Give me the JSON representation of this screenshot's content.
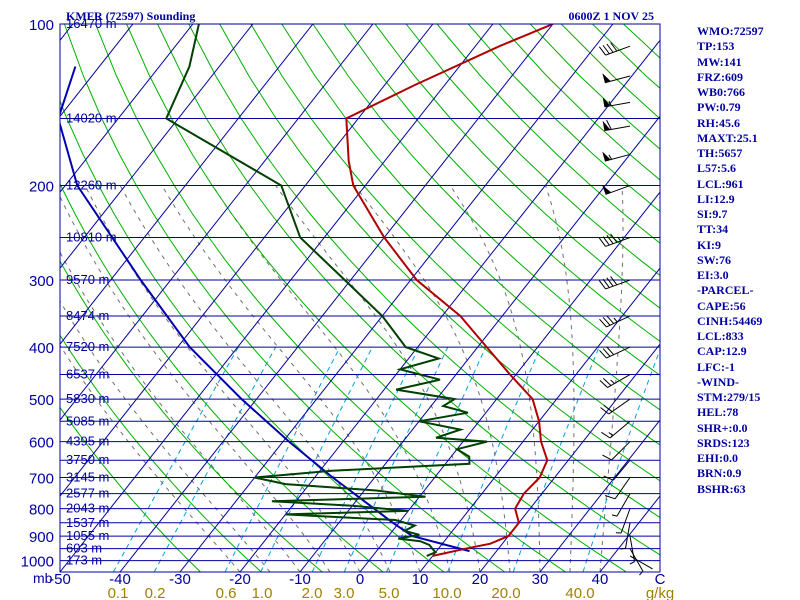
{
  "chart_data": {
    "type": "line",
    "title": "KMFR (72597) Sounding",
    "time_label": "0600Z  1 NOV 25",
    "pressure_axis_unit": "mb",
    "pressure_ticks": [
      100,
      200,
      300,
      400,
      500,
      600,
      700,
      800,
      900,
      1000
    ],
    "pressure_tick_labels": [
      "100",
      "200",
      "300",
      "400",
      "500",
      "600",
      "700",
      "800",
      "900",
      "1000"
    ],
    "temperature_ticks": [
      -50,
      -40,
      -30,
      -20,
      -10,
      0,
      10,
      20,
      30,
      40,
      50
    ],
    "temperature_tick_labels": [
      "-50",
      "-40",
      "-30",
      "-20",
      "-10",
      "0",
      "10",
      "20",
      "30",
      "40",
      "C"
    ],
    "mixing_ratio_labels": [
      "0.1",
      "0.2",
      "0.6",
      "1.0",
      "2.0",
      "3.0",
      "5.0",
      "10.0",
      "20.0",
      "40.0",
      "g/kg"
    ],
    "height_levels": [
      {
        "p": 100,
        "label": "16470 m"
      },
      {
        "p": 150,
        "label": "14020 m"
      },
      {
        "p": 200,
        "label": "12260 m"
      },
      {
        "p": 250,
        "label": "10810 m"
      },
      {
        "p": 300,
        "label": "9570 m"
      },
      {
        "p": 350,
        "label": "8474 m"
      },
      {
        "p": 400,
        "label": "7520 m"
      },
      {
        "p": 450,
        "label": "6537 m"
      },
      {
        "p": 500,
        "label": "5830 m"
      },
      {
        "p": 550,
        "label": "5085 m"
      },
      {
        "p": 600,
        "label": "4395 m"
      },
      {
        "p": 650,
        "label": "3750 m"
      },
      {
        "p": 700,
        "label": "3145 m"
      },
      {
        "p": 750,
        "label": "2577 m"
      },
      {
        "p": 800,
        "label": "2043 m"
      },
      {
        "p": 850,
        "label": "1537 m"
      },
      {
        "p": 900,
        "label": "1055 m"
      },
      {
        "p": 950,
        "label": "603 m"
      },
      {
        "p": 1000,
        "label": "173 m"
      }
    ],
    "temperature_profile": [
      [
        980,
        10.0
      ],
      [
        950,
        14.5
      ],
      [
        930,
        18.0
      ],
      [
        900,
        20.0
      ],
      [
        850,
        20.0
      ],
      [
        800,
        17.5
      ],
      [
        750,
        17.0
      ],
      [
        700,
        17.5
      ],
      [
        650,
        16.5
      ],
      [
        600,
        13.0
      ],
      [
        550,
        10.0
      ],
      [
        500,
        6.0
      ],
      [
        450,
        -1.0
      ],
      [
        400,
        -8.5
      ],
      [
        350,
        -17.0
      ],
      [
        300,
        -29.0
      ],
      [
        250,
        -40.0
      ],
      [
        200,
        -52.0
      ],
      [
        180,
        -56.0
      ],
      [
        150,
        -62.0
      ],
      [
        130,
        -55.0
      ],
      [
        110,
        -46.0
      ],
      [
        100,
        -40.0
      ]
    ],
    "dewpoint_profile": [
      [
        980,
        9.0
      ],
      [
        965,
        10.0
      ],
      [
        950,
        9.0
      ],
      [
        935,
        8.0
      ],
      [
        920,
        6.0
      ],
      [
        910,
        2.0
      ],
      [
        895,
        5.0
      ],
      [
        880,
        2.0
      ],
      [
        860,
        3.0
      ],
      [
        840,
        -1.0
      ],
      [
        820,
        -20.0
      ],
      [
        808,
        0.0
      ],
      [
        790,
        -10.0
      ],
      [
        775,
        -24.0
      ],
      [
        760,
        1.0
      ],
      [
        740,
        -8.0
      ],
      [
        720,
        -24.0
      ],
      [
        700,
        -30.0
      ],
      [
        680,
        -18.0
      ],
      [
        660,
        4.0
      ],
      [
        640,
        3.0
      ],
      [
        620,
        0.0
      ],
      [
        600,
        4.0
      ],
      [
        590,
        -5.0
      ],
      [
        570,
        -2.0
      ],
      [
        550,
        -10.0
      ],
      [
        530,
        -3.0
      ],
      [
        515,
        -8.0
      ],
      [
        500,
        -7.0
      ],
      [
        480,
        -18.0
      ],
      [
        460,
        -12.0
      ],
      [
        440,
        -20.0
      ],
      [
        420,
        -15.0
      ],
      [
        400,
        -22.0
      ],
      [
        350,
        -30.0
      ],
      [
        300,
        -41.0
      ],
      [
        250,
        -54.0
      ],
      [
        200,
        -64.0
      ],
      [
        150,
        -92.0
      ],
      [
        120,
        -95.0
      ],
      [
        100,
        -99.0
      ]
    ],
    "parcel_profile": [
      [
        960,
        15.5
      ],
      [
        900,
        4.0
      ],
      [
        850,
        -1.0
      ],
      [
        800,
        -6.0
      ],
      [
        700,
        -17.0
      ],
      [
        600,
        -29.0
      ],
      [
        500,
        -42.5
      ],
      [
        400,
        -58.0
      ],
      [
        300,
        -75.0
      ],
      [
        200,
        -98.0
      ],
      [
        150,
        -110.0
      ],
      [
        120,
        -114.0
      ]
    ],
    "wind_barbs": [
      {
        "p": 110,
        "dir": 250,
        "spd": 40
      },
      {
        "p": 125,
        "dir": 255,
        "spd": 50
      },
      {
        "p": 140,
        "dir": 260,
        "spd": 55
      },
      {
        "p": 155,
        "dir": 260,
        "spd": 60
      },
      {
        "p": 175,
        "dir": 255,
        "spd": 55
      },
      {
        "p": 200,
        "dir": 250,
        "spd": 50
      },
      {
        "p": 250,
        "dir": 250,
        "spd": 45
      },
      {
        "p": 300,
        "dir": 250,
        "spd": 40
      },
      {
        "p": 350,
        "dir": 245,
        "spd": 35
      },
      {
        "p": 400,
        "dir": 245,
        "spd": 30
      },
      {
        "p": 450,
        "dir": 240,
        "spd": 25
      },
      {
        "p": 500,
        "dir": 235,
        "spd": 20
      },
      {
        "p": 550,
        "dir": 230,
        "spd": 15
      },
      {
        "p": 600,
        "dir": 225,
        "spd": 12
      },
      {
        "p": 650,
        "dir": 220,
        "spd": 10
      },
      {
        "p": 700,
        "dir": 215,
        "spd": 10
      },
      {
        "p": 750,
        "dir": 210,
        "spd": 8
      },
      {
        "p": 800,
        "dir": 200,
        "spd": 8
      },
      {
        "p": 850,
        "dir": 190,
        "spd": 5
      },
      {
        "p": 900,
        "dir": 170,
        "spd": 5
      },
      {
        "p": 950,
        "dir": 150,
        "spd": 5
      },
      {
        "p": 980,
        "dir": 120,
        "spd": 3
      }
    ],
    "indices": [
      "WMO:72597",
      "TP:153",
      "MW:141",
      "FRZ:609",
      "WB0:766",
      "PW:0.79",
      "RH:45.6",
      "MAXT:25.1",
      "TH:5657",
      "L57:5.6",
      "LCL:961",
      "LI:12.9",
      "SI:9.7",
      "TT:34",
      "KI:9",
      "SW:76",
      "EI:3.0",
      "-PARCEL-",
      "CAPE:56",
      "CINH:54469",
      "LCL:833",
      "CAP:12.9",
      "LFC:-1",
      "-WIND-",
      "STM:279/15",
      "HEL:78",
      "SHR+:0.0",
      "SRDS:123",
      "EHI:0.0",
      "BRN:0.9",
      "BSHR:63"
    ],
    "colors": {
      "isobar": "#0000a0",
      "isotherm": "#0000a0",
      "dry_adiabat": "#00b000",
      "moist_adiabat": "#707070",
      "mixing_ratio": "#00a0e0",
      "temperature": "#b00000",
      "dewpoint": "#004000",
      "parcel": "#0000b0",
      "wind_barb": "#000000",
      "label": "#0000a0",
      "mixing_label": "#a08000"
    }
  }
}
